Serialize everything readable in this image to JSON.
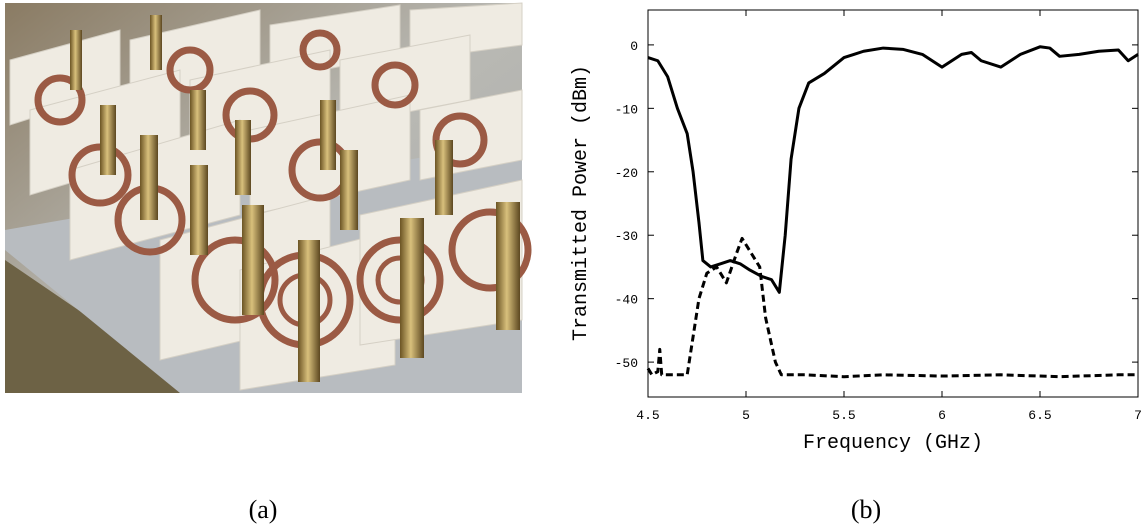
{
  "chart_data": {
    "type": "line",
    "xlabel": "Frequency (GHz)",
    "ylabel": "Transmitted Power (dBm)",
    "xlim": [
      4.5,
      7
    ],
    "ylim": [
      -55.5,
      5.5
    ],
    "xticks": [
      4.5,
      5,
      5.5,
      6,
      6.5,
      7
    ],
    "yticks": [
      -50,
      -40,
      -30,
      -20,
      -10,
      0
    ],
    "series": [
      {
        "color": "#000000",
        "style": "solid",
        "x": [
          4.5,
          4.55,
          4.6,
          4.65,
          4.7,
          4.73,
          4.76,
          4.78,
          4.82,
          4.87,
          4.92,
          4.97,
          5.02,
          5.08,
          5.13,
          5.17,
          5.2,
          5.23,
          5.27,
          5.32,
          5.4,
          5.5,
          5.55,
          5.6,
          5.7,
          5.8,
          5.9,
          6.0,
          6.05,
          6.1,
          6.15,
          6.2,
          6.3,
          6.4,
          6.5,
          6.55,
          6.6,
          6.7,
          6.8,
          6.9,
          6.95,
          7.0
        ],
        "values": [
          -2,
          -2.5,
          -5,
          -10,
          -14,
          -20,
          -28,
          -34,
          -35,
          -34.5,
          -34,
          -34.5,
          -35.5,
          -36.5,
          -37,
          -39,
          -30,
          -18,
          -10,
          -6,
          -4.5,
          -2,
          -1.5,
          -1,
          -0.5,
          -0.7,
          -1.5,
          -3.5,
          -2.5,
          -1.5,
          -1.2,
          -2.5,
          -3.5,
          -1.5,
          -0.3,
          -0.5,
          -1.8,
          -1.5,
          -1,
          -0.8,
          -2.5,
          -1.5
        ]
      },
      {
        "color": "#000000",
        "style": "dashed",
        "x": [
          4.5,
          4.52,
          4.55,
          4.56,
          4.57,
          4.6,
          4.7,
          4.73,
          4.76,
          4.8,
          4.85,
          4.9,
          4.95,
          4.98,
          5.03,
          5.07,
          5.1,
          5.15,
          5.18,
          5.3,
          5.5,
          5.7,
          6.0,
          6.3,
          6.6,
          6.9,
          7.0
        ],
        "values": [
          -51,
          -52,
          -51.5,
          -48,
          -52,
          -52,
          -52,
          -46,
          -40,
          -36,
          -35,
          -37.5,
          -33,
          -30.5,
          -33,
          -35,
          -43,
          -50,
          -52,
          -52,
          -52.3,
          -52,
          -52.2,
          -52,
          -52.3,
          -52,
          -52
        ]
      }
    ]
  },
  "captions": [
    "(a)",
    "(b)"
  ]
}
